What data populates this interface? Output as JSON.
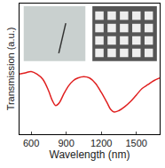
{
  "chart_data": {
    "type": "line",
    "x_label": "Wavelength (nm)",
    "y_label": "Transmission (a.u.)",
    "x": [
      500,
      550,
      600,
      650,
      700,
      750,
      780,
      810,
      840,
      880,
      920,
      960,
      1000,
      1050,
      1100,
      1150,
      1200,
      1250,
      1280,
      1310,
      1350,
      1400,
      1450,
      1500,
      1550,
      1600,
      1650,
      1700
    ],
    "values": [
      0.46,
      0.47,
      0.48,
      0.46,
      0.42,
      0.33,
      0.26,
      0.22,
      0.24,
      0.31,
      0.37,
      0.41,
      0.43,
      0.44,
      0.43,
      0.39,
      0.32,
      0.24,
      0.19,
      0.17,
      0.18,
      0.21,
      0.25,
      0.3,
      0.35,
      0.38,
      0.41,
      0.43
    ],
    "color": "#e02020",
    "xlim": [
      500,
      1700
    ],
    "xticks": [
      600,
      900,
      1200,
      1500
    ],
    "ylim": [
      0,
      1
    ],
    "yticks": [],
    "tick_labels": "x",
    "grid": false
  }
}
